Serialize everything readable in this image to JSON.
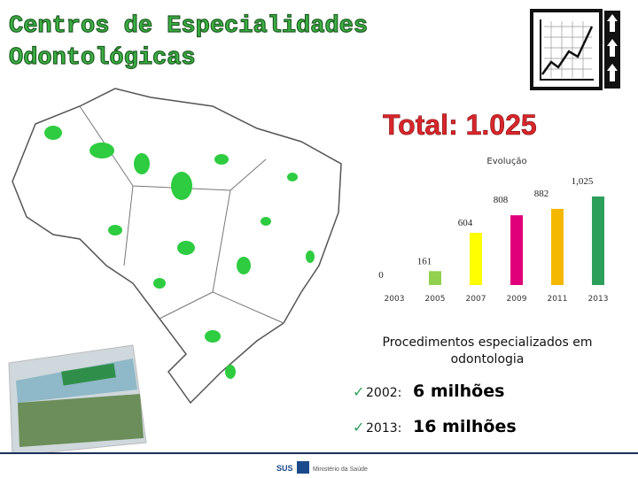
{
  "header": {
    "title_lines": [
      "Centros de Especialidades",
      "Odontológicas"
    ],
    "total": "Total: 1.025"
  },
  "chart_data": {
    "type": "bar",
    "title": "Evolução",
    "categories": [
      "2003",
      "2005",
      "2007",
      "2009",
      "2011",
      "2013"
    ],
    "values": [
      0,
      161,
      604,
      808,
      882,
      1025
    ],
    "value_labels": [
      "0",
      "161",
      "604",
      "808",
      "882",
      "1,025"
    ],
    "colors": [
      "#92d050",
      "#92d050",
      "#ffff00",
      "#e0007a",
      "#f5b800",
      "#2ca05a"
    ]
  },
  "notes": {
    "heading_lines": [
      "Procedimentos especializados em",
      "odontologia"
    ],
    "items": [
      {
        "year": "2002:",
        "amount": "6 milhões"
      },
      {
        "year": "2013:",
        "amount": "16 milhões"
      }
    ]
  },
  "footer": {
    "sus": "SUS",
    "ministry": "Ministério da Saúde"
  }
}
